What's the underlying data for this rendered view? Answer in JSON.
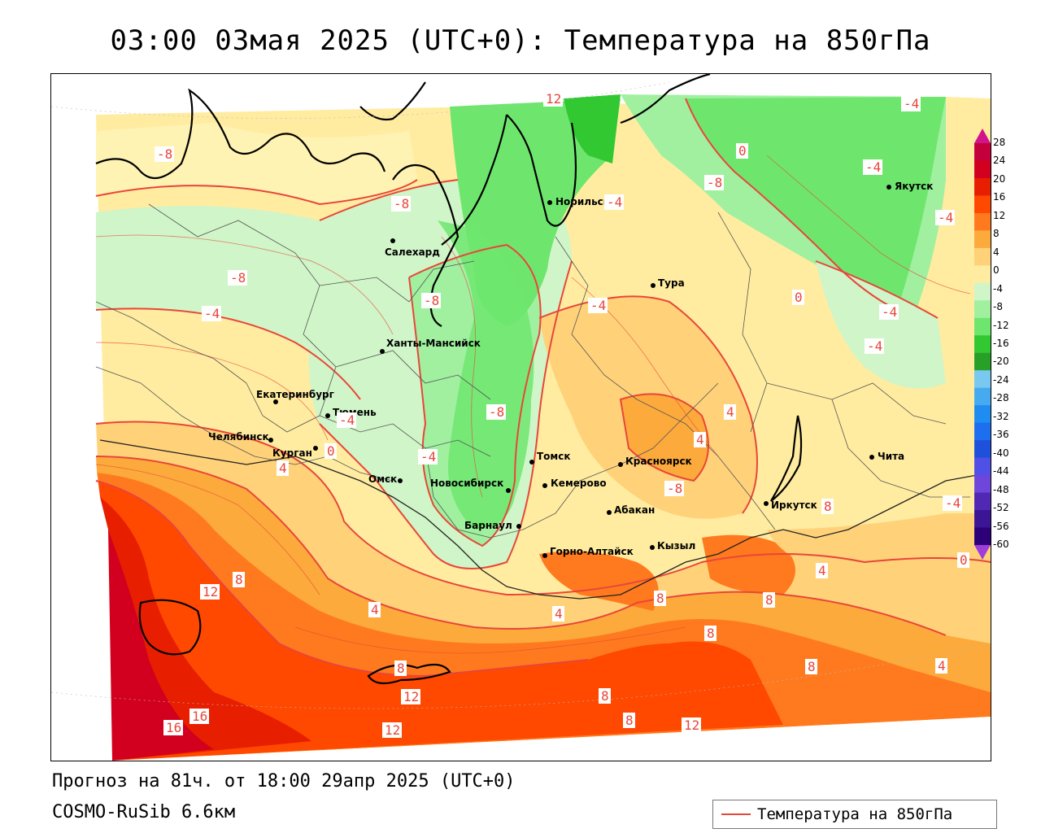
{
  "title": "03:00 03мая 2025 (UTC+0): Температура на 850гПа",
  "footer": {
    "forecast": "Прогноз на 81ч. от 18:00 29апр 2025 (UTC+0)",
    "model": "COSMO-RuSib 6.6км"
  },
  "legend": {
    "label": "Температура на 850гПа",
    "color": "#e8463a"
  },
  "colorbar": {
    "labels": [
      "28",
      "24",
      "20",
      "16",
      "12",
      "8",
      "4",
      "0",
      "-4",
      "-8",
      "-12",
      "-16",
      "-20",
      "-24",
      "-28",
      "-32",
      "-36",
      "-40",
      "-44",
      "-48",
      "-52",
      "-56",
      "-60"
    ],
    "colors": [
      "#c4003c",
      "#d2001e",
      "#e81e00",
      "#ff4800",
      "#ff7a1e",
      "#fcaa3c",
      "#ffd27a",
      "#ffeca0",
      "#d0f5c8",
      "#a0f0a0",
      "#6ee66e",
      "#32c832",
      "#28a028",
      "#78c8f0",
      "#46aaf0",
      "#1e8cf0",
      "#1e6ef0",
      "#1e50dc",
      "#5050e6",
      "#6e46dc",
      "#5028b4",
      "#3c1496",
      "#2c0078"
    ],
    "top_color": "#d2148c",
    "bottom_color": "#a03cdc"
  },
  "cities": [
    {
      "name": "Якутск"
    },
    {
      "name": "Норильск"
    },
    {
      "name": "Салехард"
    },
    {
      "name": "Тура"
    },
    {
      "name": "Ханты-Мансийск"
    },
    {
      "name": "Екатеринбург"
    },
    {
      "name": "Тюмень"
    },
    {
      "name": "Челябинск"
    },
    {
      "name": "Курган"
    },
    {
      "name": "Омск"
    },
    {
      "name": "Томск"
    },
    {
      "name": "Новосибирск"
    },
    {
      "name": "Кемерово"
    },
    {
      "name": "Красноярск"
    },
    {
      "name": "Абакан"
    },
    {
      "name": "Барнаул"
    },
    {
      "name": "Горно-Алтайск"
    },
    {
      "name": "Кызыл"
    },
    {
      "name": "Иркутск"
    },
    {
      "name": "Чита"
    }
  ],
  "isoline_labels": [
    "12",
    "-4",
    "-8",
    "0",
    "-4",
    "-8",
    "-4",
    "-8",
    "-4",
    "-8",
    "0",
    "-4",
    "-4",
    "-8",
    "-4",
    "-4",
    "0",
    "-4",
    "-8",
    "0",
    "4",
    "-4",
    "4",
    "4",
    "-8",
    "8",
    "-4",
    "12",
    "8",
    "4",
    "4",
    "8",
    "8",
    "4",
    "8",
    "8",
    "12",
    "12",
    "8",
    "8",
    "12",
    "16",
    "16",
    "8",
    "4",
    "0"
  ],
  "colors": {
    "contour": "#e8463a",
    "border": "#555555",
    "coast": "#000000"
  }
}
